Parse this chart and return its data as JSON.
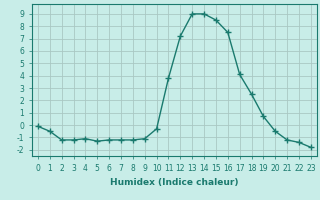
{
  "x": [
    0,
    1,
    2,
    3,
    4,
    5,
    6,
    7,
    8,
    9,
    10,
    11,
    12,
    13,
    14,
    15,
    16,
    17,
    18,
    19,
    20,
    21,
    22,
    23
  ],
  "y": [
    -0.1,
    -0.5,
    -1.2,
    -1.2,
    -1.1,
    -1.3,
    -1.2,
    -1.2,
    -1.2,
    -1.1,
    -0.3,
    3.8,
    7.2,
    9.0,
    9.0,
    8.5,
    7.5,
    4.1,
    2.5,
    0.7,
    -0.5,
    -1.2,
    -1.4,
    -1.8
  ],
  "line_color": "#1a7a6e",
  "marker": "+",
  "marker_size": 4.0,
  "bg_color": "#c8ede8",
  "grid_color": "#aac8c4",
  "xlabel": "Humidex (Indice chaleur)",
  "xlabel_fontsize": 6.5,
  "tick_fontsize": 5.5,
  "ylim": [
    -2.5,
    9.8
  ],
  "xlim": [
    -0.5,
    23.5
  ],
  "yticks": [
    -2,
    -1,
    0,
    1,
    2,
    3,
    4,
    5,
    6,
    7,
    8,
    9
  ],
  "xticks": [
    0,
    1,
    2,
    3,
    4,
    5,
    6,
    7,
    8,
    9,
    10,
    11,
    12,
    13,
    14,
    15,
    16,
    17,
    18,
    19,
    20,
    21,
    22,
    23
  ],
  "line_width": 1.0,
  "spine_color": "#1a7a6e"
}
